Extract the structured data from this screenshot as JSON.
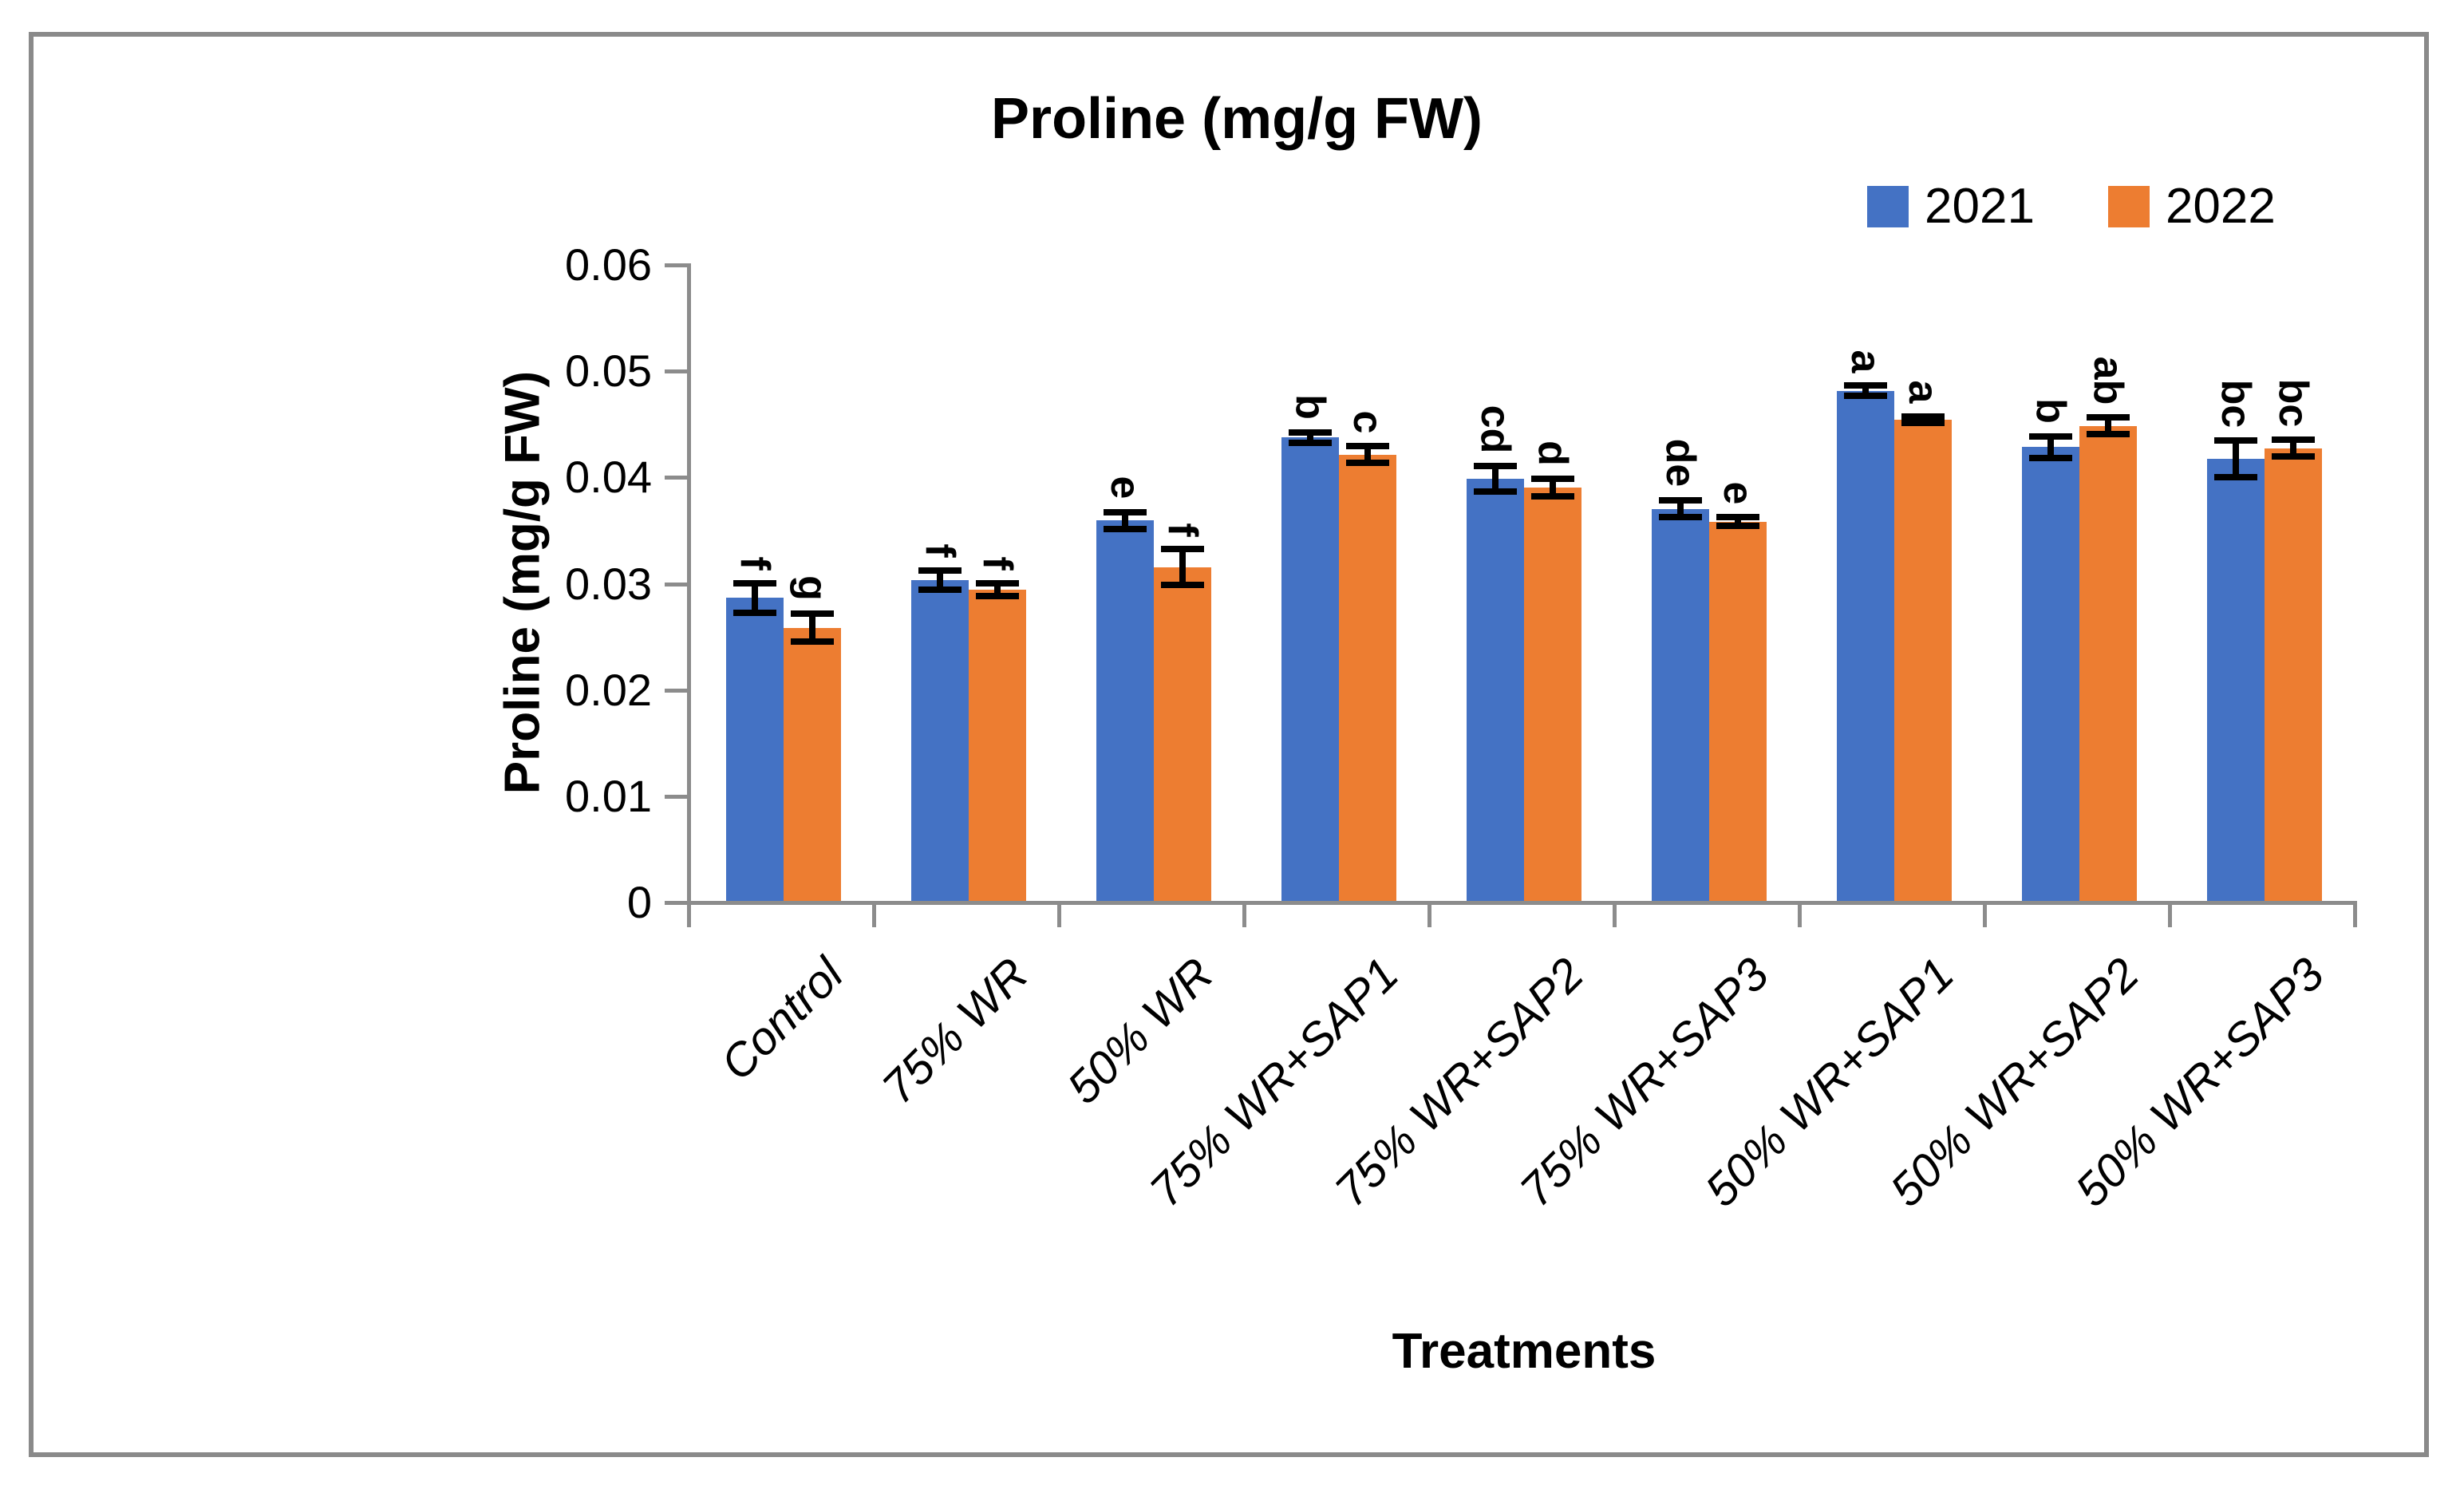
{
  "title": "Proline (mg/g FW)",
  "legend": [
    {
      "label": "2021",
      "color": "#4472C4"
    },
    {
      "label": "2022",
      "color": "#ED7D31"
    }
  ],
  "y_axis": {
    "title": "Proline (mg/g FW)",
    "tick_labels": [
      "0",
      "0.01",
      "0.02",
      "0.03",
      "0.04",
      "0.05",
      "0.06"
    ]
  },
  "x_axis": {
    "title": "Treatments"
  },
  "chart_data": {
    "type": "bar",
    "title": "Proline (mg/g FW)",
    "xlabel": "Treatments",
    "ylabel": "Proline (mg/g FW)",
    "ylim": [
      0,
      0.06
    ],
    "ytick_step": 0.01,
    "grid": false,
    "legend_position": "top-right",
    "annotation_rotation_deg": 90,
    "categories": [
      "Control",
      "75% WR",
      "50% WR",
      "75% WR+SAP1",
      "75% WR+SAP2",
      "75% WR+SAP3",
      "50% WR+SAP1",
      "50% WR+SAP2",
      "50% WR+SAP3"
    ],
    "series": [
      {
        "name": "2021",
        "color": "#4472C4",
        "values": [
          0.0285,
          0.0302,
          0.0358,
          0.0436,
          0.0397,
          0.0369,
          0.048,
          0.0427,
          0.0416
        ],
        "errors": [
          0.0014,
          0.0009,
          0.0008,
          0.0005,
          0.0012,
          0.0008,
          0.0005,
          0.001,
          0.0017
        ],
        "letters": [
          "f",
          "f",
          "e",
          "b",
          "cd",
          "de",
          "a",
          "b",
          "bc"
        ]
      },
      {
        "name": "2022",
        "color": "#ED7D31",
        "values": [
          0.0257,
          0.0293,
          0.0314,
          0.042,
          0.0389,
          0.0357,
          0.0453,
          0.0447,
          0.0426
        ],
        "errors": [
          0.0013,
          0.0006,
          0.0017,
          0.0008,
          0.0008,
          0.0004,
          0.0003,
          0.0008,
          0.0008
        ],
        "letters": [
          "g",
          "f",
          "f",
          "c",
          "d",
          "e",
          "a",
          "ab",
          "bc"
        ]
      }
    ]
  }
}
